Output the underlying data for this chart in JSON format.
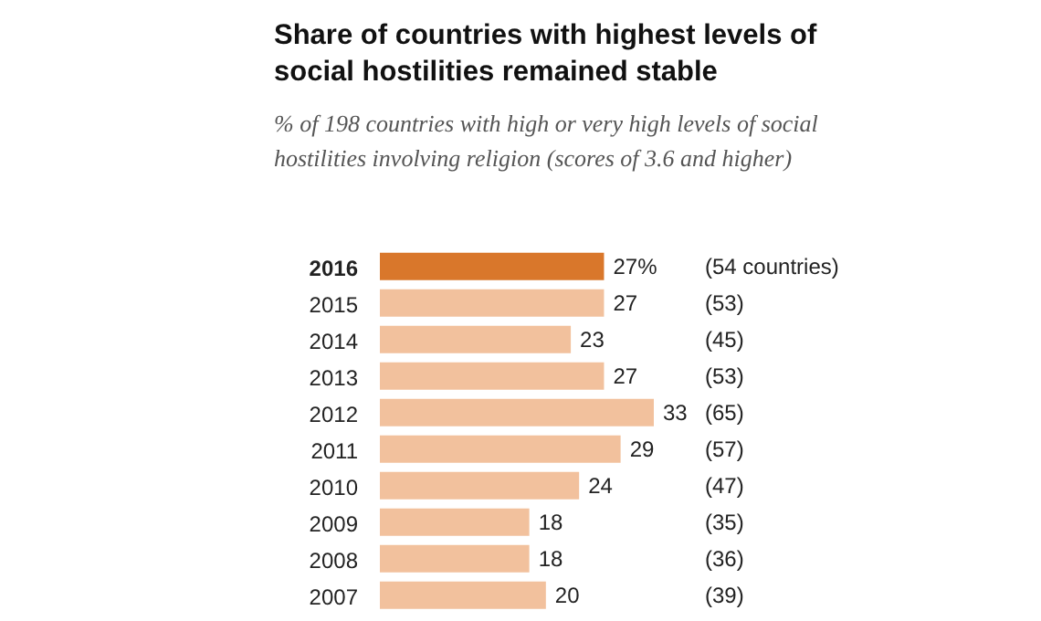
{
  "chart_data": {
    "type": "bar",
    "orientation": "horizontal",
    "title": "Share of countries with highest levels of social hostilities remained stable",
    "subtitle": "% of 198 countries with high or very high levels of social hostilities involving religion (scores of 3.6 and higher)",
    "categories": [
      "2016",
      "2015",
      "2014",
      "2013",
      "2012",
      "2011",
      "2010",
      "2009",
      "2008",
      "2007"
    ],
    "values": [
      27,
      27,
      23,
      27,
      33,
      29,
      24,
      18,
      18,
      20
    ],
    "value_labels": [
      "27%",
      "27",
      "23",
      "27",
      "33",
      "29",
      "24",
      "18",
      "18",
      "20"
    ],
    "colors": [
      "#d9772b",
      "#f2c19d",
      "#f2c19d",
      "#f2c19d",
      "#f2c19d",
      "#f2c19d",
      "#f2c19d",
      "#f2c19d",
      "#f2c19d",
      "#f2c19d"
    ],
    "annotations": [
      "(54 countries)",
      "(53)",
      "(45)",
      "(53)",
      "(65)",
      "(57)",
      "(47)",
      "(35)",
      "(36)",
      "(39)"
    ]
  }
}
